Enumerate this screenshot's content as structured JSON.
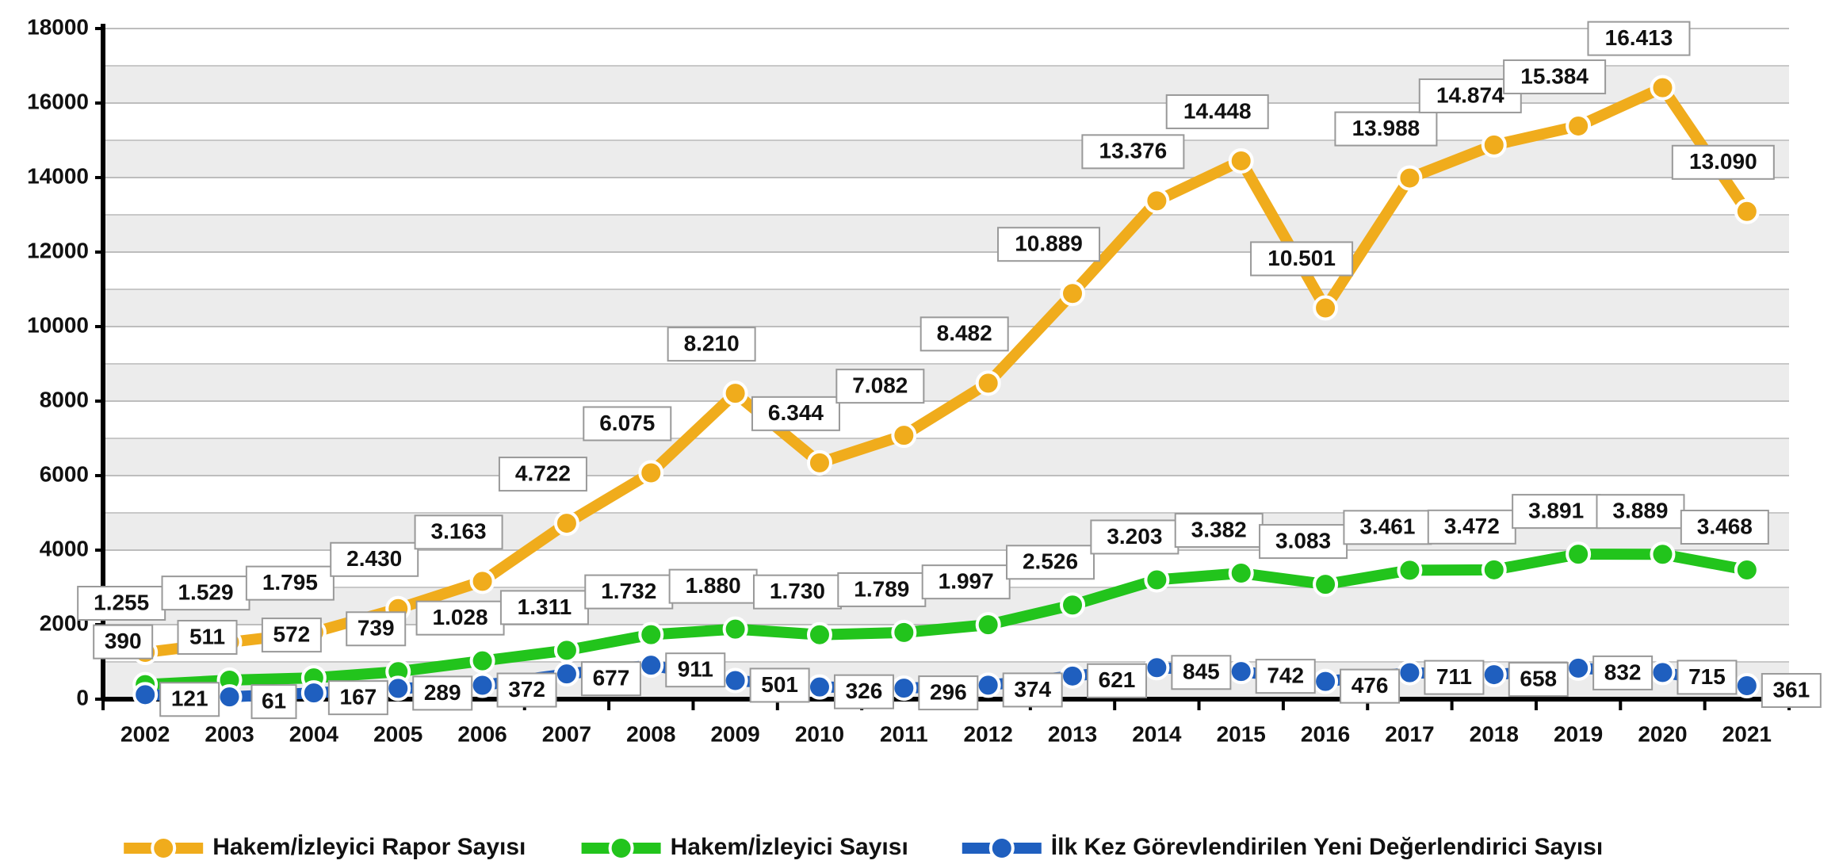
{
  "chart_data": {
    "type": "line",
    "categories": [
      "2002",
      "2003",
      "2004",
      "2005",
      "2006",
      "2007",
      "2008",
      "2009",
      "2010",
      "2011",
      "2012",
      "2013",
      "2014",
      "2015",
      "2016",
      "2017",
      "2018",
      "2019",
      "2020",
      "2021"
    ],
    "series": [
      {
        "name": "Hakem/İzleyici Rapor Sayısı",
        "color": "#f0ac1c",
        "values": [
          1255,
          1529,
          1795,
          2430,
          3163,
          4722,
          6075,
          8210,
          6344,
          7082,
          8482,
          10889,
          13376,
          14448,
          10501,
          13988,
          14874,
          15384,
          16413,
          13090
        ],
        "value_labels": [
          "1.255",
          "1.529",
          "1.795",
          "2.430",
          "3.163",
          "4.722",
          "6.075",
          "8.210",
          "6.344",
          "7.082",
          "8.482",
          "10.889",
          "13.376",
          "14.448",
          "10.501",
          "13.988",
          "14.874",
          "15.384",
          "16.413",
          "13.090"
        ]
      },
      {
        "name": "Hakem/İzleyici Sayısı",
        "color": "#22c41c",
        "values": [
          390,
          511,
          572,
          739,
          1028,
          1311,
          1732,
          1880,
          1730,
          1789,
          1997,
          2526,
          3203,
          3382,
          3083,
          3461,
          3472,
          3891,
          3889,
          3468
        ],
        "value_labels": [
          "390",
          "511",
          "572",
          "739",
          "1.028",
          "1.311",
          "1.732",
          "1.880",
          "1.730",
          "1.789",
          "1.997",
          "2.526",
          "3.203",
          "3.382",
          "3.083",
          "3.461",
          "3.472",
          "3.891",
          "3.889",
          "3.468"
        ]
      },
      {
        "name": "İlk Kez Görevlendirilen Yeni Değerlendirici Sayısı",
        "color": "#1f5fbf",
        "values": [
          121,
          61,
          167,
          289,
          372,
          677,
          911,
          501,
          326,
          296,
          374,
          621,
          845,
          742,
          476,
          711,
          658,
          832,
          715,
          361
        ]
      }
    ],
    "ylim": [
      0,
      18000
    ],
    "yticks": [
      0,
      2000,
      4000,
      6000,
      8000,
      10000,
      12000,
      14000,
      16000,
      18000
    ],
    "grid": true,
    "legend": "bottom"
  }
}
